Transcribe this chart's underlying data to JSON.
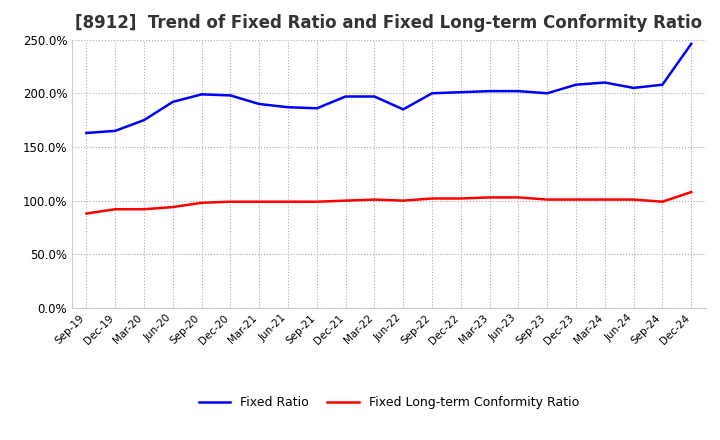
{
  "title": "[8912]  Trend of Fixed Ratio and Fixed Long-term Conformity Ratio",
  "x_labels": [
    "Sep-19",
    "Dec-19",
    "Mar-20",
    "Jun-20",
    "Sep-20",
    "Dec-20",
    "Mar-21",
    "Jun-21",
    "Sep-21",
    "Dec-21",
    "Mar-22",
    "Jun-22",
    "Sep-22",
    "Dec-22",
    "Mar-23",
    "Jun-23",
    "Sep-23",
    "Dec-23",
    "Mar-24",
    "Jun-24",
    "Sep-24",
    "Dec-24"
  ],
  "fixed_ratio": [
    1.63,
    1.65,
    1.75,
    1.92,
    1.99,
    1.98,
    1.9,
    1.87,
    1.86,
    1.97,
    1.97,
    1.85,
    2.0,
    2.01,
    2.02,
    2.02,
    2.0,
    2.08,
    2.1,
    2.05,
    2.08,
    2.46
  ],
  "fixed_lt_ratio": [
    0.88,
    0.92,
    0.92,
    0.94,
    0.98,
    0.99,
    0.99,
    0.99,
    0.99,
    1.0,
    1.01,
    1.0,
    1.02,
    1.02,
    1.03,
    1.03,
    1.01,
    1.01,
    1.01,
    1.01,
    0.99,
    1.08
  ],
  "fixed_ratio_color": "#0000FF",
  "fixed_lt_ratio_color": "#FF0000",
  "ylim": [
    0.0,
    2.5
  ],
  "yticks": [
    0.0,
    0.5,
    1.0,
    1.5,
    2.0,
    2.5
  ],
  "background_color": "#FFFFFF",
  "grid_color": "#AAAAAA",
  "title_fontsize": 12,
  "legend_labels": [
    "Fixed Ratio",
    "Fixed Long-term Conformity Ratio"
  ]
}
